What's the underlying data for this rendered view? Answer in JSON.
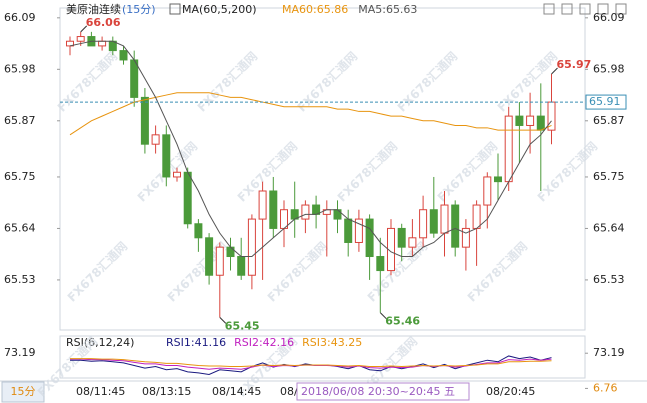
{
  "chart_data": [
    {
      "type": "candlestick",
      "title": "美原油连续",
      "period": "(15分)",
      "indicator": "MA(60,5,200)",
      "ylim": [
        65.423,
        66.111
      ],
      "yticks": [
        65.53,
        65.64,
        65.75,
        65.87,
        65.98,
        66.09
      ],
      "open": [
        66.03,
        66.04,
        66.05,
        66.03,
        66.04,
        66.02,
        66.0,
        65.92,
        65.82,
        65.84,
        65.75,
        65.76,
        65.65,
        65.62,
        65.54,
        65.6,
        65.58,
        65.54,
        65.66,
        65.72,
        65.64,
        65.68,
        65.66,
        65.69,
        65.67,
        65.68,
        65.66,
        65.61,
        65.66,
        65.58,
        65.55,
        65.64,
        65.6,
        65.62,
        65.68,
        65.63,
        65.69,
        65.6,
        65.64,
        65.69,
        65.75,
        65.74,
        65.88,
        65.86,
        65.88,
        65.85
      ],
      "high": [
        66.05,
        66.06,
        66.06,
        66.05,
        66.05,
        66.03,
        66.02,
        65.94,
        65.86,
        65.86,
        65.77,
        65.77,
        65.66,
        65.63,
        65.61,
        65.62,
        65.62,
        65.67,
        65.74,
        65.75,
        65.7,
        65.74,
        65.7,
        65.71,
        65.7,
        65.7,
        65.68,
        65.68,
        65.67,
        65.62,
        65.66,
        65.65,
        65.66,
        65.71,
        65.75,
        65.72,
        65.7,
        65.66,
        65.7,
        65.76,
        65.8,
        65.9,
        65.91,
        65.93,
        65.95,
        65.97
      ],
      "low": [
        66.01,
        66.03,
        66.03,
        66.02,
        66.01,
        65.99,
        65.9,
        65.8,
        65.8,
        65.73,
        65.74,
        65.64,
        65.59,
        65.52,
        65.45,
        65.55,
        65.53,
        65.51,
        65.53,
        65.62,
        65.6,
        65.62,
        65.63,
        65.64,
        65.58,
        65.63,
        65.58,
        65.59,
        65.53,
        65.46,
        65.54,
        65.57,
        65.58,
        65.6,
        65.62,
        65.58,
        65.58,
        65.55,
        65.56,
        65.64,
        65.7,
        65.72,
        65.78,
        65.8,
        65.72,
        65.82
      ],
      "close": [
        66.04,
        66.05,
        66.03,
        66.04,
        66.02,
        66.0,
        65.92,
        65.82,
        65.84,
        65.75,
        65.76,
        65.65,
        65.62,
        65.54,
        65.6,
        65.58,
        65.54,
        65.66,
        65.72,
        65.64,
        65.68,
        65.66,
        65.69,
        65.67,
        65.68,
        65.66,
        65.61,
        65.66,
        65.58,
        65.55,
        65.64,
        65.6,
        65.62,
        65.68,
        65.63,
        65.69,
        65.6,
        65.64,
        65.69,
        65.75,
        65.74,
        65.88,
        65.86,
        65.88,
        65.85,
        65.91
      ],
      "up_color": "#d9443c",
      "down_color": "#4b9a3a",
      "series": [
        {
          "name": "MA60:65.86",
          "color": "#e8940f",
          "values": [
            65.84,
            65.855,
            65.87,
            65.88,
            65.89,
            65.9,
            65.91,
            65.915,
            65.92,
            65.925,
            65.93,
            65.93,
            65.93,
            65.93,
            65.925,
            65.92,
            65.92,
            65.915,
            65.91,
            65.905,
            65.9,
            65.9,
            65.9,
            65.9,
            65.9,
            65.895,
            65.895,
            65.89,
            65.89,
            65.885,
            65.88,
            65.88,
            65.875,
            65.87,
            65.87,
            65.865,
            65.86,
            65.86,
            65.855,
            65.855,
            65.85,
            65.85,
            65.85,
            65.85,
            65.85,
            65.86
          ]
        },
        {
          "name": "MA5:65.63",
          "color": "#555555",
          "values": [
            66.03,
            66.035,
            66.04,
            66.04,
            66.04,
            66.03,
            66.0,
            65.96,
            65.92,
            65.87,
            65.82,
            65.76,
            65.72,
            65.67,
            65.63,
            65.6,
            65.58,
            65.58,
            65.6,
            65.62,
            65.64,
            65.66,
            65.67,
            65.67,
            65.68,
            65.68,
            65.66,
            65.65,
            65.64,
            65.61,
            65.59,
            65.58,
            65.58,
            65.6,
            65.61,
            65.63,
            65.64,
            65.63,
            65.64,
            65.66,
            65.7,
            65.74,
            65.78,
            65.82,
            65.84,
            65.87
          ]
        }
      ],
      "current_price": 65.91,
      "extreme_labels": [
        66.06,
        65.97,
        65.45,
        65.46
      ],
      "x_labels": [
        "08/11:45",
        "08/13:15",
        "08/14:45",
        "08/",
        "08/20:45"
      ],
      "crosshair_label": "2018/06/08 20:30~20:45 五",
      "period_button": "15分",
      "watermark": "FX678汇通网"
    },
    {
      "type": "line",
      "title": "RSI(6,12,24)",
      "ylim": [
        0,
        100
      ],
      "yticks": [
        6.76,
        73.19
      ],
      "series": [
        {
          "name": "RSI1:41.16",
          "color": "#1a1a80",
          "values": [
            60,
            60,
            58,
            59,
            57,
            55,
            50,
            45,
            48,
            42,
            44,
            38,
            36,
            33,
            42,
            40,
            38,
            48,
            55,
            47,
            52,
            48,
            53,
            50,
            51,
            48,
            44,
            50,
            42,
            40,
            48,
            44,
            48,
            53,
            46,
            52,
            44,
            50,
            55,
            60,
            57,
            68,
            63,
            66,
            60,
            65
          ]
        },
        {
          "name": "RSI2:42.16",
          "color": "#c020c0",
          "values": [
            62,
            62,
            61,
            61,
            60,
            59,
            56,
            53,
            53,
            50,
            50,
            47,
            45,
            43,
            45,
            44,
            43,
            47,
            51,
            48,
            50,
            49,
            51,
            50,
            50,
            49,
            47,
            49,
            46,
            45,
            47,
            46,
            47,
            50,
            48,
            50,
            47,
            49,
            52,
            55,
            55,
            61,
            60,
            62,
            60,
            62
          ]
        },
        {
          "name": "RSI3:43.25",
          "color": "#e8940f",
          "values": [
            63,
            63,
            63,
            62,
            62,
            61,
            59,
            57,
            56,
            54,
            54,
            52,
            50,
            49,
            49,
            48,
            48,
            49,
            51,
            50,
            51,
            50,
            51,
            51,
            51,
            50,
            49,
            50,
            48,
            48,
            49,
            48,
            49,
            50,
            49,
            50,
            49,
            50,
            51,
            53,
            53,
            57,
            57,
            58,
            58,
            59
          ]
        }
      ]
    }
  ]
}
